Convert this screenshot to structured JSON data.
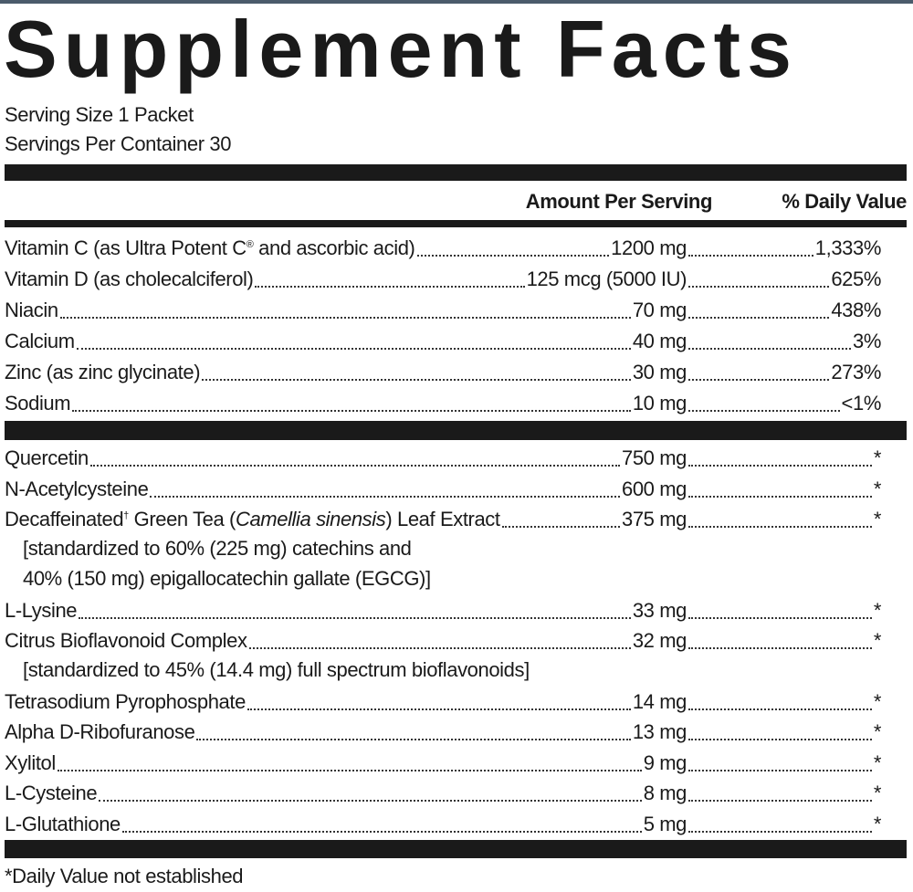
{
  "header": {
    "title": "Supplement Facts",
    "serving_size": "Serving Size 1 Packet",
    "servings_per_container": "Servings Per Container 30"
  },
  "columns": {
    "amount": "Amount Per Serving",
    "daily_value": "% Daily Value"
  },
  "nutrients": [
    {
      "name": [
        "Vitamin C (as Ultra Potent C",
        "®",
        " and ascorbic acid)"
      ],
      "amount": "1200 mg",
      "daily_value": "1,333%"
    },
    {
      "name": "Vitamin D (as cholecalciferol)",
      "amount": "125 mcg (5000 IU)",
      "daily_value": "625%"
    },
    {
      "name": "Niacin",
      "amount": "70 mg",
      "daily_value": "438%"
    },
    {
      "name": "Calcium",
      "amount": "40 mg",
      "daily_value": "3%"
    },
    {
      "name": "Zinc (as zinc glycinate)",
      "amount": "30 mg",
      "daily_value": "273%"
    },
    {
      "name": "Sodium",
      "amount": "10 mg",
      "daily_value": "<1%"
    }
  ],
  "other_ingredients": [
    {
      "name": "Quercetin",
      "amount": "750 mg",
      "daily_value": "*"
    },
    {
      "name": "N-Acetylcysteine",
      "amount": "600 mg",
      "daily_value": "*"
    },
    {
      "name": [
        "Decaffeinated",
        "†",
        " Green Tea (",
        "Camellia sinensis",
        ") Leaf Extract"
      ],
      "amount": "375 mg",
      "daily_value": "*",
      "note": [
        "[standardized to 60% (225 mg) catechins and",
        "40% (150 mg) epigallocatechin gallate (EGCG)]"
      ]
    },
    {
      "name": "L-Lysine",
      "amount": "33 mg",
      "daily_value": "*"
    },
    {
      "name": "Citrus Bioflavonoid Complex",
      "amount": "32 mg",
      "daily_value": "*",
      "note": [
        "[standardized to 45% (14.4 mg) full spectrum bioflavonoids]"
      ]
    },
    {
      "name": "Tetrasodium Pyrophosphate",
      "amount": "14 mg",
      "daily_value": "*"
    },
    {
      "name": "Alpha D-Ribofuranose",
      "amount": "13 mg",
      "daily_value": "*"
    },
    {
      "name": "Xylitol",
      "amount": "9 mg",
      "daily_value": "*"
    },
    {
      "name": "L-Cysteine",
      "amount": "8 mg",
      "daily_value": "*"
    },
    {
      "name": "L-Glutathione",
      "amount": "5 mg",
      "daily_value": "*"
    }
  ],
  "footnote": "*Daily Value not established"
}
